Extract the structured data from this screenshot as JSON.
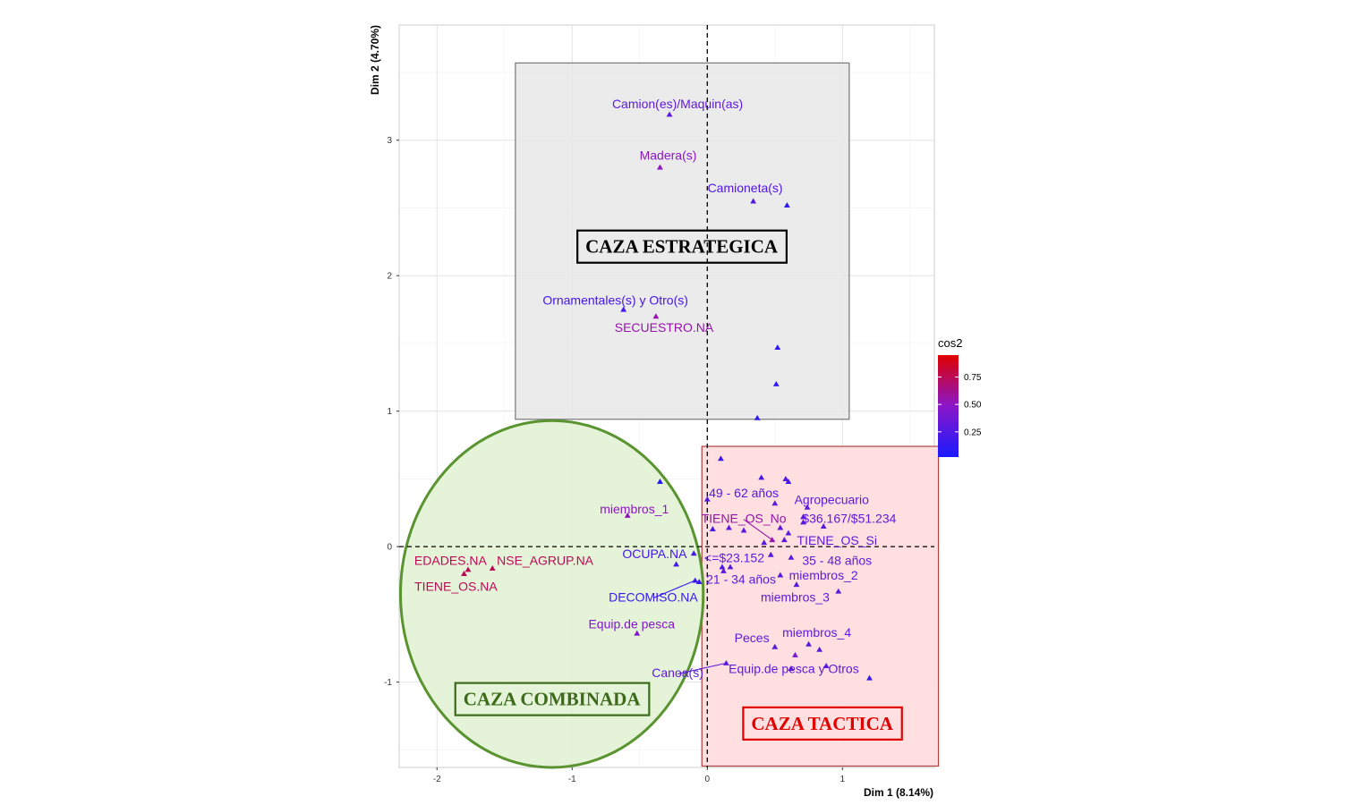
{
  "chart_data": {
    "type": "scatter",
    "title": "",
    "xlabel": "Dim 1 (8.14%)",
    "ylabel": "Dim 2 (4.70%)",
    "xlim": [
      -2.28,
      1.68
    ],
    "ylim": [
      -1.63,
      3.85
    ],
    "xticks": [
      -2,
      -1,
      0,
      1
    ],
    "yticks": [
      -1,
      0,
      1,
      2,
      3
    ],
    "grid": true,
    "reference_lines": {
      "x": 0,
      "y": 0,
      "style": "dashed"
    },
    "legend": {
      "title": "cos2",
      "ticks": [
        0.25,
        0.5,
        0.75
      ],
      "tick_labels": [
        "0.25",
        "0.50",
        "0.75"
      ],
      "range": [
        0.02,
        0.95
      ],
      "gradient": [
        "#1a1aff",
        "#8a16c8",
        "#e00000"
      ],
      "position": "right"
    },
    "regions": [
      {
        "label": "CAZA ESTRATEGICA",
        "shape": "rect",
        "x": [
          -1.42,
          1.05
        ],
        "y": [
          0.94,
          3.57
        ],
        "fill": "#e8e8e8",
        "stroke": "#777777",
        "label_at": [
          -0.19,
          2.2
        ],
        "label_color": "#000000",
        "label_border": "#000000"
      },
      {
        "label": "CAZA TACTICA",
        "shape": "rect",
        "x": [
          -0.04,
          1.71
        ],
        "y": [
          -1.62,
          0.74
        ],
        "fill": "#ffd9d9",
        "stroke": "#b04040",
        "label_at": [
          0.85,
          -1.32
        ],
        "label_color": "#e00000",
        "label_border": "#e00000"
      },
      {
        "label": "CAZA COMBINADA",
        "shape": "ellipse",
        "cx": -1.15,
        "cy": -0.35,
        "rx": 1.12,
        "ry": 1.28,
        "fill": "#e2f2d4",
        "stroke": "#5a9430",
        "label_at": [
          -1.15,
          -1.14
        ],
        "label_color": "#3a6a1a",
        "label_border": "#3a6a1a"
      }
    ],
    "points": [
      {
        "label": "Camion(es)/Maquin(as)",
        "x": -0.28,
        "y": 3.19,
        "cos2": 0.3,
        "lx": -0.22,
        "ly": 3.26
      },
      {
        "label": "Madera(s)",
        "x": -0.35,
        "y": 2.8,
        "cos2": 0.5,
        "lx": -0.29,
        "ly": 2.88
      },
      {
        "label": "Camioneta(s)",
        "x": 0.34,
        "y": 2.55,
        "cos2": 0.25,
        "lx": 0.28,
        "ly": 2.64
      },
      {
        "label": "",
        "x": 0.59,
        "y": 2.52,
        "cos2": 0.12
      },
      {
        "label": "Ornamentales(s) y Otro(s)",
        "x": -0.62,
        "y": 1.75,
        "cos2": 0.2,
        "lx": -0.68,
        "ly": 1.81
      },
      {
        "label": "SECUESTRO.NA",
        "x": -0.38,
        "y": 1.7,
        "cos2": 0.55,
        "lx": -0.32,
        "ly": 1.61
      },
      {
        "label": "",
        "x": 0.52,
        "y": 1.47,
        "cos2": 0.1
      },
      {
        "label": "",
        "x": 0.51,
        "y": 1.2,
        "cos2": 0.1
      },
      {
        "label": "",
        "x": 0.37,
        "y": 0.95,
        "cos2": 0.1
      },
      {
        "label": "",
        "x": 0.1,
        "y": 0.65,
        "cos2": 0.15
      },
      {
        "label": "",
        "x": -0.35,
        "y": 0.48,
        "cos2": 0.05
      },
      {
        "label": "",
        "x": 0.4,
        "y": 0.51,
        "cos2": 0.2
      },
      {
        "label": "",
        "x": 0.58,
        "y": 0.5,
        "cos2": 0.25
      },
      {
        "label": "",
        "x": 0.6,
        "y": 0.48,
        "cos2": 0.2
      },
      {
        "label": "49 - 62 años",
        "x": 0.0,
        "y": 0.35,
        "cos2": 0.25,
        "lx": 0.27,
        "ly": 0.39
      },
      {
        "label": "miembros_1",
        "x": -0.59,
        "y": 0.23,
        "cos2": 0.5,
        "lx": -0.54,
        "ly": 0.27
      },
      {
        "label": "Agropecuario",
        "x": 0.5,
        "y": 0.32,
        "cos2": 0.3,
        "lx": 0.92,
        "ly": 0.34
      },
      {
        "label": "",
        "x": 0.74,
        "y": 0.29,
        "cos2": 0.3
      },
      {
        "label": "$36.167/$51.234",
        "x": 0.71,
        "y": 0.22,
        "cos2": 0.3,
        "lx": 1.05,
        "ly": 0.2
      },
      {
        "label": "",
        "x": 0.71,
        "y": 0.18,
        "cos2": 0.3
      },
      {
        "label": "TIENE_OS_No",
        "x": 0.48,
        "y": 0.05,
        "cos2": 0.55,
        "lx": 0.27,
        "ly": 0.2,
        "leader": true
      },
      {
        "label": "",
        "x": 0.16,
        "y": 0.14,
        "cos2": 0.3
      },
      {
        "label": "",
        "x": 0.27,
        "y": 0.12,
        "cos2": 0.3
      },
      {
        "label": "",
        "x": 0.04,
        "y": 0.13,
        "cos2": 0.2
      },
      {
        "label": "",
        "x": 0.54,
        "y": 0.14,
        "cos2": 0.3
      },
      {
        "label": "",
        "x": 0.6,
        "y": 0.1,
        "cos2": 0.3
      },
      {
        "label": "",
        "x": 0.86,
        "y": 0.15,
        "cos2": 0.3
      },
      {
        "label": "TIENE_OS_Si",
        "x": 0.57,
        "y": 0.05,
        "cos2": 0.3,
        "lx": 0.96,
        "ly": 0.04
      },
      {
        "label": "",
        "x": 0.42,
        "y": 0.03,
        "cos2": 0.3
      },
      {
        "label": "",
        "x": 0.47,
        "y": -0.06,
        "cos2": 0.3
      },
      {
        "label": "35 - 48 años",
        "x": 0.62,
        "y": -0.08,
        "cos2": 0.3,
        "lx": 0.96,
        "ly": -0.11
      },
      {
        "label": "EDADES.NA",
        "x": -1.77,
        "y": -0.17,
        "cos2": 0.75,
        "lx": -1.9,
        "ly": -0.11
      },
      {
        "label": "NSE_AGRUP.NA",
        "x": -1.59,
        "y": -0.16,
        "cos2": 0.75,
        "lx": -1.2,
        "ly": -0.11
      },
      {
        "label": "TIENE_OS.NA",
        "x": -1.8,
        "y": -0.2,
        "cos2": 0.75,
        "lx": -1.86,
        "ly": -0.3
      },
      {
        "label": "OCUPA.NA",
        "x": -0.1,
        "y": -0.05,
        "cos2": 0.2,
        "lx": -0.39,
        "ly": -0.06
      },
      {
        "label": "",
        "x": -0.23,
        "y": -0.13,
        "cos2": 0.2
      },
      {
        "label": "<=$23.152",
        "x": 0.17,
        "y": -0.15,
        "cos2": 0.3,
        "lx": 0.2,
        "ly": -0.09
      },
      {
        "label": "",
        "x": 0.11,
        "y": -0.15,
        "cos2": 0.2
      },
      {
        "label": "miembros_2",
        "x": 0.54,
        "y": -0.21,
        "cos2": 0.3,
        "lx": 0.86,
        "ly": -0.22
      },
      {
        "label": "21 - 34 años",
        "x": 0.12,
        "y": -0.18,
        "cos2": 0.3,
        "lx": 0.25,
        "ly": -0.25
      },
      {
        "label": "DECOMISO.NA",
        "x": -0.09,
        "y": -0.25,
        "cos2": 0.15,
        "lx": -0.4,
        "ly": -0.38,
        "leader": true
      },
      {
        "label": "",
        "x": -0.06,
        "y": -0.26,
        "cos2": 0.15
      },
      {
        "label": "",
        "x": 0.66,
        "y": -0.28,
        "cos2": 0.3
      },
      {
        "label": "miembros_3",
        "x": 0.97,
        "y": -0.33,
        "cos2": 0.3,
        "lx": 0.65,
        "ly": -0.38
      },
      {
        "label": "Equip.de pesca",
        "x": -0.52,
        "y": -0.64,
        "cos2": 0.45,
        "lx": -0.56,
        "ly": -0.58
      },
      {
        "label": "Peces",
        "x": 0.5,
        "y": -0.74,
        "cos2": 0.3,
        "lx": 0.33,
        "ly": -0.68
      },
      {
        "label": "miembros_4",
        "x": 0.75,
        "y": -0.72,
        "cos2": 0.3,
        "lx": 0.81,
        "ly": -0.64
      },
      {
        "label": "",
        "x": 0.83,
        "y": -0.76,
        "cos2": 0.3
      },
      {
        "label": "",
        "x": 0.65,
        "y": -0.8,
        "cos2": 0.4
      },
      {
        "label": "",
        "x": 0.88,
        "y": -0.88,
        "cos2": 0.3
      },
      {
        "label": "Equip.de pesca y Otros",
        "x": 0.62,
        "y": -0.9,
        "cos2": 0.3,
        "lx": 0.64,
        "ly": -0.91
      },
      {
        "label": "Canoa(s)",
        "x": 0.14,
        "y": -0.86,
        "cos2": 0.3,
        "lx": -0.22,
        "ly": -0.94,
        "leader": true
      },
      {
        "label": "",
        "x": 1.2,
        "y": -0.97,
        "cos2": 0.15
      }
    ]
  }
}
